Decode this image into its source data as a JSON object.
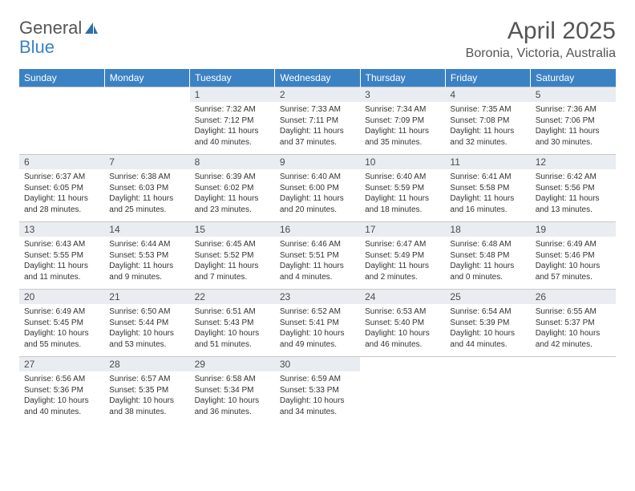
{
  "brand": {
    "part1": "General",
    "part2": "Blue"
  },
  "title": "April 2025",
  "location": "Boronia, Victoria, Australia",
  "colors": {
    "header_bg": "#3b82c4",
    "header_fg": "#ffffff",
    "daynum_bg": "#e9edf1",
    "border": "#c8c8c8",
    "text": "#333333",
    "title": "#555555"
  },
  "weekdays": [
    "Sunday",
    "Monday",
    "Tuesday",
    "Wednesday",
    "Thursday",
    "Friday",
    "Saturday"
  ],
  "weeks": [
    [
      {
        "n": "",
        "sr": "",
        "ss": "",
        "dl": ""
      },
      {
        "n": "",
        "sr": "",
        "ss": "",
        "dl": ""
      },
      {
        "n": "1",
        "sr": "Sunrise: 7:32 AM",
        "ss": "Sunset: 7:12 PM",
        "dl": "Daylight: 11 hours and 40 minutes."
      },
      {
        "n": "2",
        "sr": "Sunrise: 7:33 AM",
        "ss": "Sunset: 7:11 PM",
        "dl": "Daylight: 11 hours and 37 minutes."
      },
      {
        "n": "3",
        "sr": "Sunrise: 7:34 AM",
        "ss": "Sunset: 7:09 PM",
        "dl": "Daylight: 11 hours and 35 minutes."
      },
      {
        "n": "4",
        "sr": "Sunrise: 7:35 AM",
        "ss": "Sunset: 7:08 PM",
        "dl": "Daylight: 11 hours and 32 minutes."
      },
      {
        "n": "5",
        "sr": "Sunrise: 7:36 AM",
        "ss": "Sunset: 7:06 PM",
        "dl": "Daylight: 11 hours and 30 minutes."
      }
    ],
    [
      {
        "n": "6",
        "sr": "Sunrise: 6:37 AM",
        "ss": "Sunset: 6:05 PM",
        "dl": "Daylight: 11 hours and 28 minutes."
      },
      {
        "n": "7",
        "sr": "Sunrise: 6:38 AM",
        "ss": "Sunset: 6:03 PM",
        "dl": "Daylight: 11 hours and 25 minutes."
      },
      {
        "n": "8",
        "sr": "Sunrise: 6:39 AM",
        "ss": "Sunset: 6:02 PM",
        "dl": "Daylight: 11 hours and 23 minutes."
      },
      {
        "n": "9",
        "sr": "Sunrise: 6:40 AM",
        "ss": "Sunset: 6:00 PM",
        "dl": "Daylight: 11 hours and 20 minutes."
      },
      {
        "n": "10",
        "sr": "Sunrise: 6:40 AM",
        "ss": "Sunset: 5:59 PM",
        "dl": "Daylight: 11 hours and 18 minutes."
      },
      {
        "n": "11",
        "sr": "Sunrise: 6:41 AM",
        "ss": "Sunset: 5:58 PM",
        "dl": "Daylight: 11 hours and 16 minutes."
      },
      {
        "n": "12",
        "sr": "Sunrise: 6:42 AM",
        "ss": "Sunset: 5:56 PM",
        "dl": "Daylight: 11 hours and 13 minutes."
      }
    ],
    [
      {
        "n": "13",
        "sr": "Sunrise: 6:43 AM",
        "ss": "Sunset: 5:55 PM",
        "dl": "Daylight: 11 hours and 11 minutes."
      },
      {
        "n": "14",
        "sr": "Sunrise: 6:44 AM",
        "ss": "Sunset: 5:53 PM",
        "dl": "Daylight: 11 hours and 9 minutes."
      },
      {
        "n": "15",
        "sr": "Sunrise: 6:45 AM",
        "ss": "Sunset: 5:52 PM",
        "dl": "Daylight: 11 hours and 7 minutes."
      },
      {
        "n": "16",
        "sr": "Sunrise: 6:46 AM",
        "ss": "Sunset: 5:51 PM",
        "dl": "Daylight: 11 hours and 4 minutes."
      },
      {
        "n": "17",
        "sr": "Sunrise: 6:47 AM",
        "ss": "Sunset: 5:49 PM",
        "dl": "Daylight: 11 hours and 2 minutes."
      },
      {
        "n": "18",
        "sr": "Sunrise: 6:48 AM",
        "ss": "Sunset: 5:48 PM",
        "dl": "Daylight: 11 hours and 0 minutes."
      },
      {
        "n": "19",
        "sr": "Sunrise: 6:49 AM",
        "ss": "Sunset: 5:46 PM",
        "dl": "Daylight: 10 hours and 57 minutes."
      }
    ],
    [
      {
        "n": "20",
        "sr": "Sunrise: 6:49 AM",
        "ss": "Sunset: 5:45 PM",
        "dl": "Daylight: 10 hours and 55 minutes."
      },
      {
        "n": "21",
        "sr": "Sunrise: 6:50 AM",
        "ss": "Sunset: 5:44 PM",
        "dl": "Daylight: 10 hours and 53 minutes."
      },
      {
        "n": "22",
        "sr": "Sunrise: 6:51 AM",
        "ss": "Sunset: 5:43 PM",
        "dl": "Daylight: 10 hours and 51 minutes."
      },
      {
        "n": "23",
        "sr": "Sunrise: 6:52 AM",
        "ss": "Sunset: 5:41 PM",
        "dl": "Daylight: 10 hours and 49 minutes."
      },
      {
        "n": "24",
        "sr": "Sunrise: 6:53 AM",
        "ss": "Sunset: 5:40 PM",
        "dl": "Daylight: 10 hours and 46 minutes."
      },
      {
        "n": "25",
        "sr": "Sunrise: 6:54 AM",
        "ss": "Sunset: 5:39 PM",
        "dl": "Daylight: 10 hours and 44 minutes."
      },
      {
        "n": "26",
        "sr": "Sunrise: 6:55 AM",
        "ss": "Sunset: 5:37 PM",
        "dl": "Daylight: 10 hours and 42 minutes."
      }
    ],
    [
      {
        "n": "27",
        "sr": "Sunrise: 6:56 AM",
        "ss": "Sunset: 5:36 PM",
        "dl": "Daylight: 10 hours and 40 minutes."
      },
      {
        "n": "28",
        "sr": "Sunrise: 6:57 AM",
        "ss": "Sunset: 5:35 PM",
        "dl": "Daylight: 10 hours and 38 minutes."
      },
      {
        "n": "29",
        "sr": "Sunrise: 6:58 AM",
        "ss": "Sunset: 5:34 PM",
        "dl": "Daylight: 10 hours and 36 minutes."
      },
      {
        "n": "30",
        "sr": "Sunrise: 6:59 AM",
        "ss": "Sunset: 5:33 PM",
        "dl": "Daylight: 10 hours and 34 minutes."
      },
      {
        "n": "",
        "sr": "",
        "ss": "",
        "dl": ""
      },
      {
        "n": "",
        "sr": "",
        "ss": "",
        "dl": ""
      },
      {
        "n": "",
        "sr": "",
        "ss": "",
        "dl": ""
      }
    ]
  ]
}
